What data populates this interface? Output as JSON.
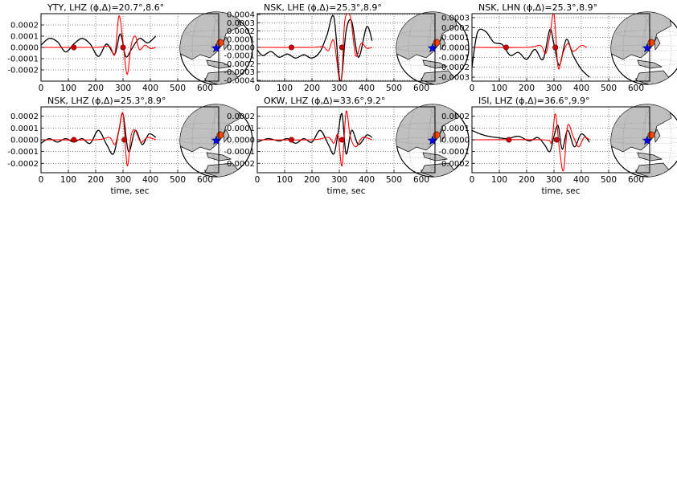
{
  "chart_data": [
    {
      "type": "line",
      "title": "YTY, LHZ (ϕ,Δ)=20.7°,8.6°",
      "xlabel": "",
      "xlim": [
        0,
        650
      ],
      "ylim": [
        -0.0003,
        0.0003
      ],
      "xticks": [
        0,
        100,
        200,
        300,
        400,
        500,
        600
      ],
      "yticks": [
        0.0002,
        0.0001,
        0.0,
        -0.0001,
        -0.0002
      ],
      "ytick_labels": [
        "0.0002",
        "0.0001",
        "0.0000",
        "-0.0001",
        "-0.0002"
      ],
      "grid": true,
      "series": [
        {
          "color": "#000000",
          "x": [
            0,
            30,
            60,
            90,
            120,
            150,
            180,
            210,
            240,
            270,
            290,
            310,
            330,
            360,
            390,
            420
          ],
          "y": [
            2e-05,
            8e-05,
            5e-05,
            -4e-05,
            3e-05,
            8e-05,
            3e-05,
            -8e-05,
            3e-05,
            -6e-05,
            0.00012,
            -8e-05,
            -2e-05,
            8e-05,
            4e-05,
            0.0001
          ]
        },
        {
          "color": "#ff0000",
          "x": [
            0,
            200,
            250,
            270,
            285,
            300,
            315,
            330,
            345,
            360,
            380,
            400,
            420
          ],
          "y": [
            0,
            0,
            1e-05,
            -6e-05,
            0.00028,
            5e-05,
            -0.00024,
            2e-05,
            0.0001,
            -2e-05,
            2e-05,
            -1e-05,
            0
          ]
        }
      ],
      "markers": [
        {
          "x": 120,
          "y": 0
        },
        {
          "x": 300,
          "y": 0
        }
      ],
      "inset": "globe"
    },
    {
      "type": "line",
      "title": "NSK, LHE (ϕ,Δ)=25.3°,8.9°",
      "xlabel": "",
      "xlim": [
        0,
        650
      ],
      "ylim": [
        -0.00041,
        0.00041
      ],
      "xticks": [
        0,
        100,
        200,
        300,
        400,
        500,
        600
      ],
      "yticks": [
        0.0004,
        0.0003,
        0.0002,
        0.0001,
        0.0,
        -0.0001,
        -0.0002,
        -0.0003,
        -0.0004
      ],
      "ytick_labels": [
        "0.0004",
        "0.0003",
        "0.0002",
        "0.0001",
        "0.0000",
        "-0.0001",
        "-0.0002",
        "-0.0003",
        "-0.0004"
      ],
      "grid": true,
      "series": [
        {
          "color": "#000000",
          "x": [
            0,
            20,
            50,
            80,
            110,
            140,
            170,
            200,
            230,
            255,
            280,
            300,
            310,
            325,
            345,
            370,
            400,
            420
          ],
          "y": [
            -3e-05,
            -0.0001,
            -5e-05,
            -0.00012,
            -8e-05,
            -0.00013,
            -9e-05,
            -0.00013,
            -5e-05,
            0.00015,
            0.00037,
            -0.00036,
            -0.00033,
            0.0002,
            0.00032,
            -0.00012,
            0.00025,
            8e-05
          ]
        },
        {
          "color": "#ff0000",
          "x": [
            0,
            200,
            240,
            260,
            280,
            300,
            310,
            320,
            340,
            360,
            380,
            400,
            420
          ],
          "y": [
            0,
            0,
            1e-05,
            -4e-05,
            8e-05,
            -0.00039,
            -0.0003,
            0.00032,
            0.00038,
            -0.0001,
            5e-05,
            -1e-05,
            0
          ]
        }
      ],
      "markers": [
        {
          "x": 125,
          "y": 0
        },
        {
          "x": 310,
          "y": 0
        }
      ],
      "inset": "globe"
    },
    {
      "type": "line",
      "title": "NSK, LHN (ϕ,Δ)=25.3°,8.9°",
      "xlabel": "",
      "xlim": [
        0,
        650
      ],
      "ylim": [
        -0.00034,
        0.00034
      ],
      "xticks": [
        0,
        100,
        200,
        300,
        400,
        500,
        600
      ],
      "yticks": [
        0.0003,
        0.0002,
        0.0001,
        0.0,
        -0.0001,
        -0.0002,
        -0.0003
      ],
      "ytick_labels": [
        "0.0003",
        "0.0002",
        "0.0001",
        "0.0000",
        "-0.0001",
        "-0.0002",
        "-0.0003"
      ],
      "grid": true,
      "series": [
        {
          "color": "#000000",
          "x": [
            0,
            20,
            50,
            80,
            110,
            140,
            170,
            200,
            230,
            260,
            285,
            300,
            320,
            345,
            370,
            400,
            430
          ],
          "y": [
            -0.0002,
            0.00015,
            0.00016,
            5e-05,
            3e-05,
            -8e-05,
            -5e-05,
            -0.00012,
            -2e-05,
            -0.00012,
            0.00018,
            3e-05,
            -0.00018,
            8e-05,
            -8e-05,
            -0.00022,
            -0.0003
          ]
        },
        {
          "color": "#ff0000",
          "x": [
            0,
            200,
            250,
            270,
            285,
            300,
            315,
            330,
            350,
            370,
            400,
            420
          ],
          "y": [
            0,
            0,
            2e-05,
            -6e-05,
            0.00012,
            0.00034,
            -0.0002,
            -8e-05,
            4e-05,
            -4e-05,
            2e-05,
            0
          ]
        }
      ],
      "markers": [
        {
          "x": 125,
          "y": 0
        },
        {
          "x": 305,
          "y": 0
        }
      ],
      "inset": "globe"
    },
    {
      "type": "line",
      "title": "NSK, LHZ (ϕ,Δ)=25.3°,8.9°",
      "xlabel": "time, sec",
      "xlim": [
        0,
        650
      ],
      "ylim": [
        -0.00028,
        0.00028
      ],
      "xticks": [
        0,
        100,
        200,
        300,
        400,
        500,
        600
      ],
      "yticks": [
        0.0002,
        0.0001,
        0.0,
        -0.0001,
        -0.0002
      ],
      "ytick_labels": [
        "0.0002",
        "0.0001",
        "0.0000",
        "-0.0001",
        "-0.0002"
      ],
      "grid": true,
      "series": [
        {
          "color": "#000000",
          "x": [
            0,
            30,
            60,
            90,
            120,
            150,
            180,
            210,
            240,
            265,
            285,
            300,
            320,
            345,
            370,
            395,
            420
          ],
          "y": [
            -3e-05,
            1e-05,
            -2e-05,
            1e-05,
            -2e-05,
            1e-05,
            -3e-05,
            8e-05,
            -4e-05,
            -0.00012,
            8e-05,
            0.00022,
            -0.0001,
            8e-05,
            -4e-05,
            5e-05,
            2e-05
          ]
        },
        {
          "color": "#ff0000",
          "x": [
            0,
            200,
            250,
            270,
            285,
            300,
            315,
            330,
            345,
            365,
            390,
            420
          ],
          "y": [
            0,
            0,
            2e-05,
            -4e-05,
            8e-05,
            0.00022,
            -0.00022,
            4e-05,
            8e-05,
            -2e-05,
            2e-05,
            0
          ]
        }
      ],
      "markers": [
        {
          "x": 120,
          "y": 0
        },
        {
          "x": 305,
          "y": 0
        }
      ],
      "inset": "globe"
    },
    {
      "type": "line",
      "title": "OKW, LHZ (ϕ,Δ)=33.6°,9.2°",
      "xlabel": "time, sec",
      "xlim": [
        0,
        650
      ],
      "ylim": [
        -0.00028,
        0.00028
      ],
      "xticks": [
        0,
        100,
        200,
        300,
        400,
        500,
        600
      ],
      "yticks": [
        0.0002,
        0.0001,
        0.0,
        -0.0001,
        -0.0002
      ],
      "ytick_labels": [
        "0.0002",
        "0.0001",
        "0.0000",
        "-0.0001",
        "-0.0002"
      ],
      "grid": true,
      "series": [
        {
          "color": "#000000",
          "x": [
            0,
            40,
            80,
            110,
            140,
            170,
            200,
            230,
            260,
            280,
            295,
            310,
            325,
            345,
            370,
            400,
            420
          ],
          "y": [
            -2e-05,
            1e-05,
            -1e-05,
            1e-05,
            -3e-05,
            1e-05,
            -2e-05,
            8e-05,
            -4e-05,
            -0.00012,
            5e-05,
            0.00022,
            -0.00012,
            8e-05,
            -4e-05,
            4e-05,
            2e-05
          ]
        },
        {
          "color": "#ff0000",
          "x": [
            0,
            200,
            260,
            280,
            295,
            310,
            325,
            340,
            360,
            385,
            420
          ],
          "y": [
            0,
            0,
            2e-05,
            -3e-05,
            4e-05,
            -0.00022,
            0.00024,
            3e-05,
            -6e-05,
            2e-05,
            0
          ]
        }
      ],
      "markers": [
        {
          "x": 125,
          "y": 0
        },
        {
          "x": 310,
          "y": 0
        }
      ],
      "inset": "globe"
    },
    {
      "type": "line",
      "title": "ISI, LHZ (ϕ,Δ)=36.6°,9.9°",
      "xlabel": "time, sec",
      "xlim": [
        0,
        650
      ],
      "ylim": [
        -0.00028,
        0.00028
      ],
      "xticks": [
        0,
        100,
        200,
        300,
        400,
        500,
        600
      ],
      "yticks": [
        0.0002,
        0.0001,
        0.0,
        -0.0001,
        -0.0002
      ],
      "ytick_labels": [
        "0.0002",
        "0.0001",
        "0.0000",
        "-0.0001",
        "-0.0002"
      ],
      "grid": true,
      "series": [
        {
          "color": "#000000",
          "x": [
            0,
            30,
            60,
            90,
            130,
            170,
            210,
            240,
            265,
            285,
            300,
            315,
            330,
            350,
            375,
            400,
            430
          ],
          "y": [
            8e-05,
            5e-05,
            3e-05,
            2e-05,
            1e-05,
            3e-05,
            -1e-05,
            2e-05,
            -4e-05,
            -0.0001,
            3e-05,
            0.00012,
            -8e-05,
            8e-05,
            -6e-05,
            5e-05,
            -2e-05
          ]
        },
        {
          "color": "#ff0000",
          "x": [
            0,
            260,
            290,
            305,
            320,
            335,
            350,
            370,
            390,
            410,
            430
          ],
          "y": [
            0,
            0,
            -2e-05,
            0.00022,
            -8e-05,
            -0.00026,
            0.00012,
            3e-05,
            -6e-05,
            2e-05,
            0
          ]
        }
      ],
      "markers": [
        {
          "x": 135,
          "y": 0
        },
        {
          "x": 310,
          "y": 0
        }
      ],
      "inset": "globe"
    }
  ],
  "inset_colors": {
    "ocean": "#ffffff",
    "land": "#c0c0c0",
    "source_marker": "#0000ff",
    "station_marker": "#ff4500"
  }
}
